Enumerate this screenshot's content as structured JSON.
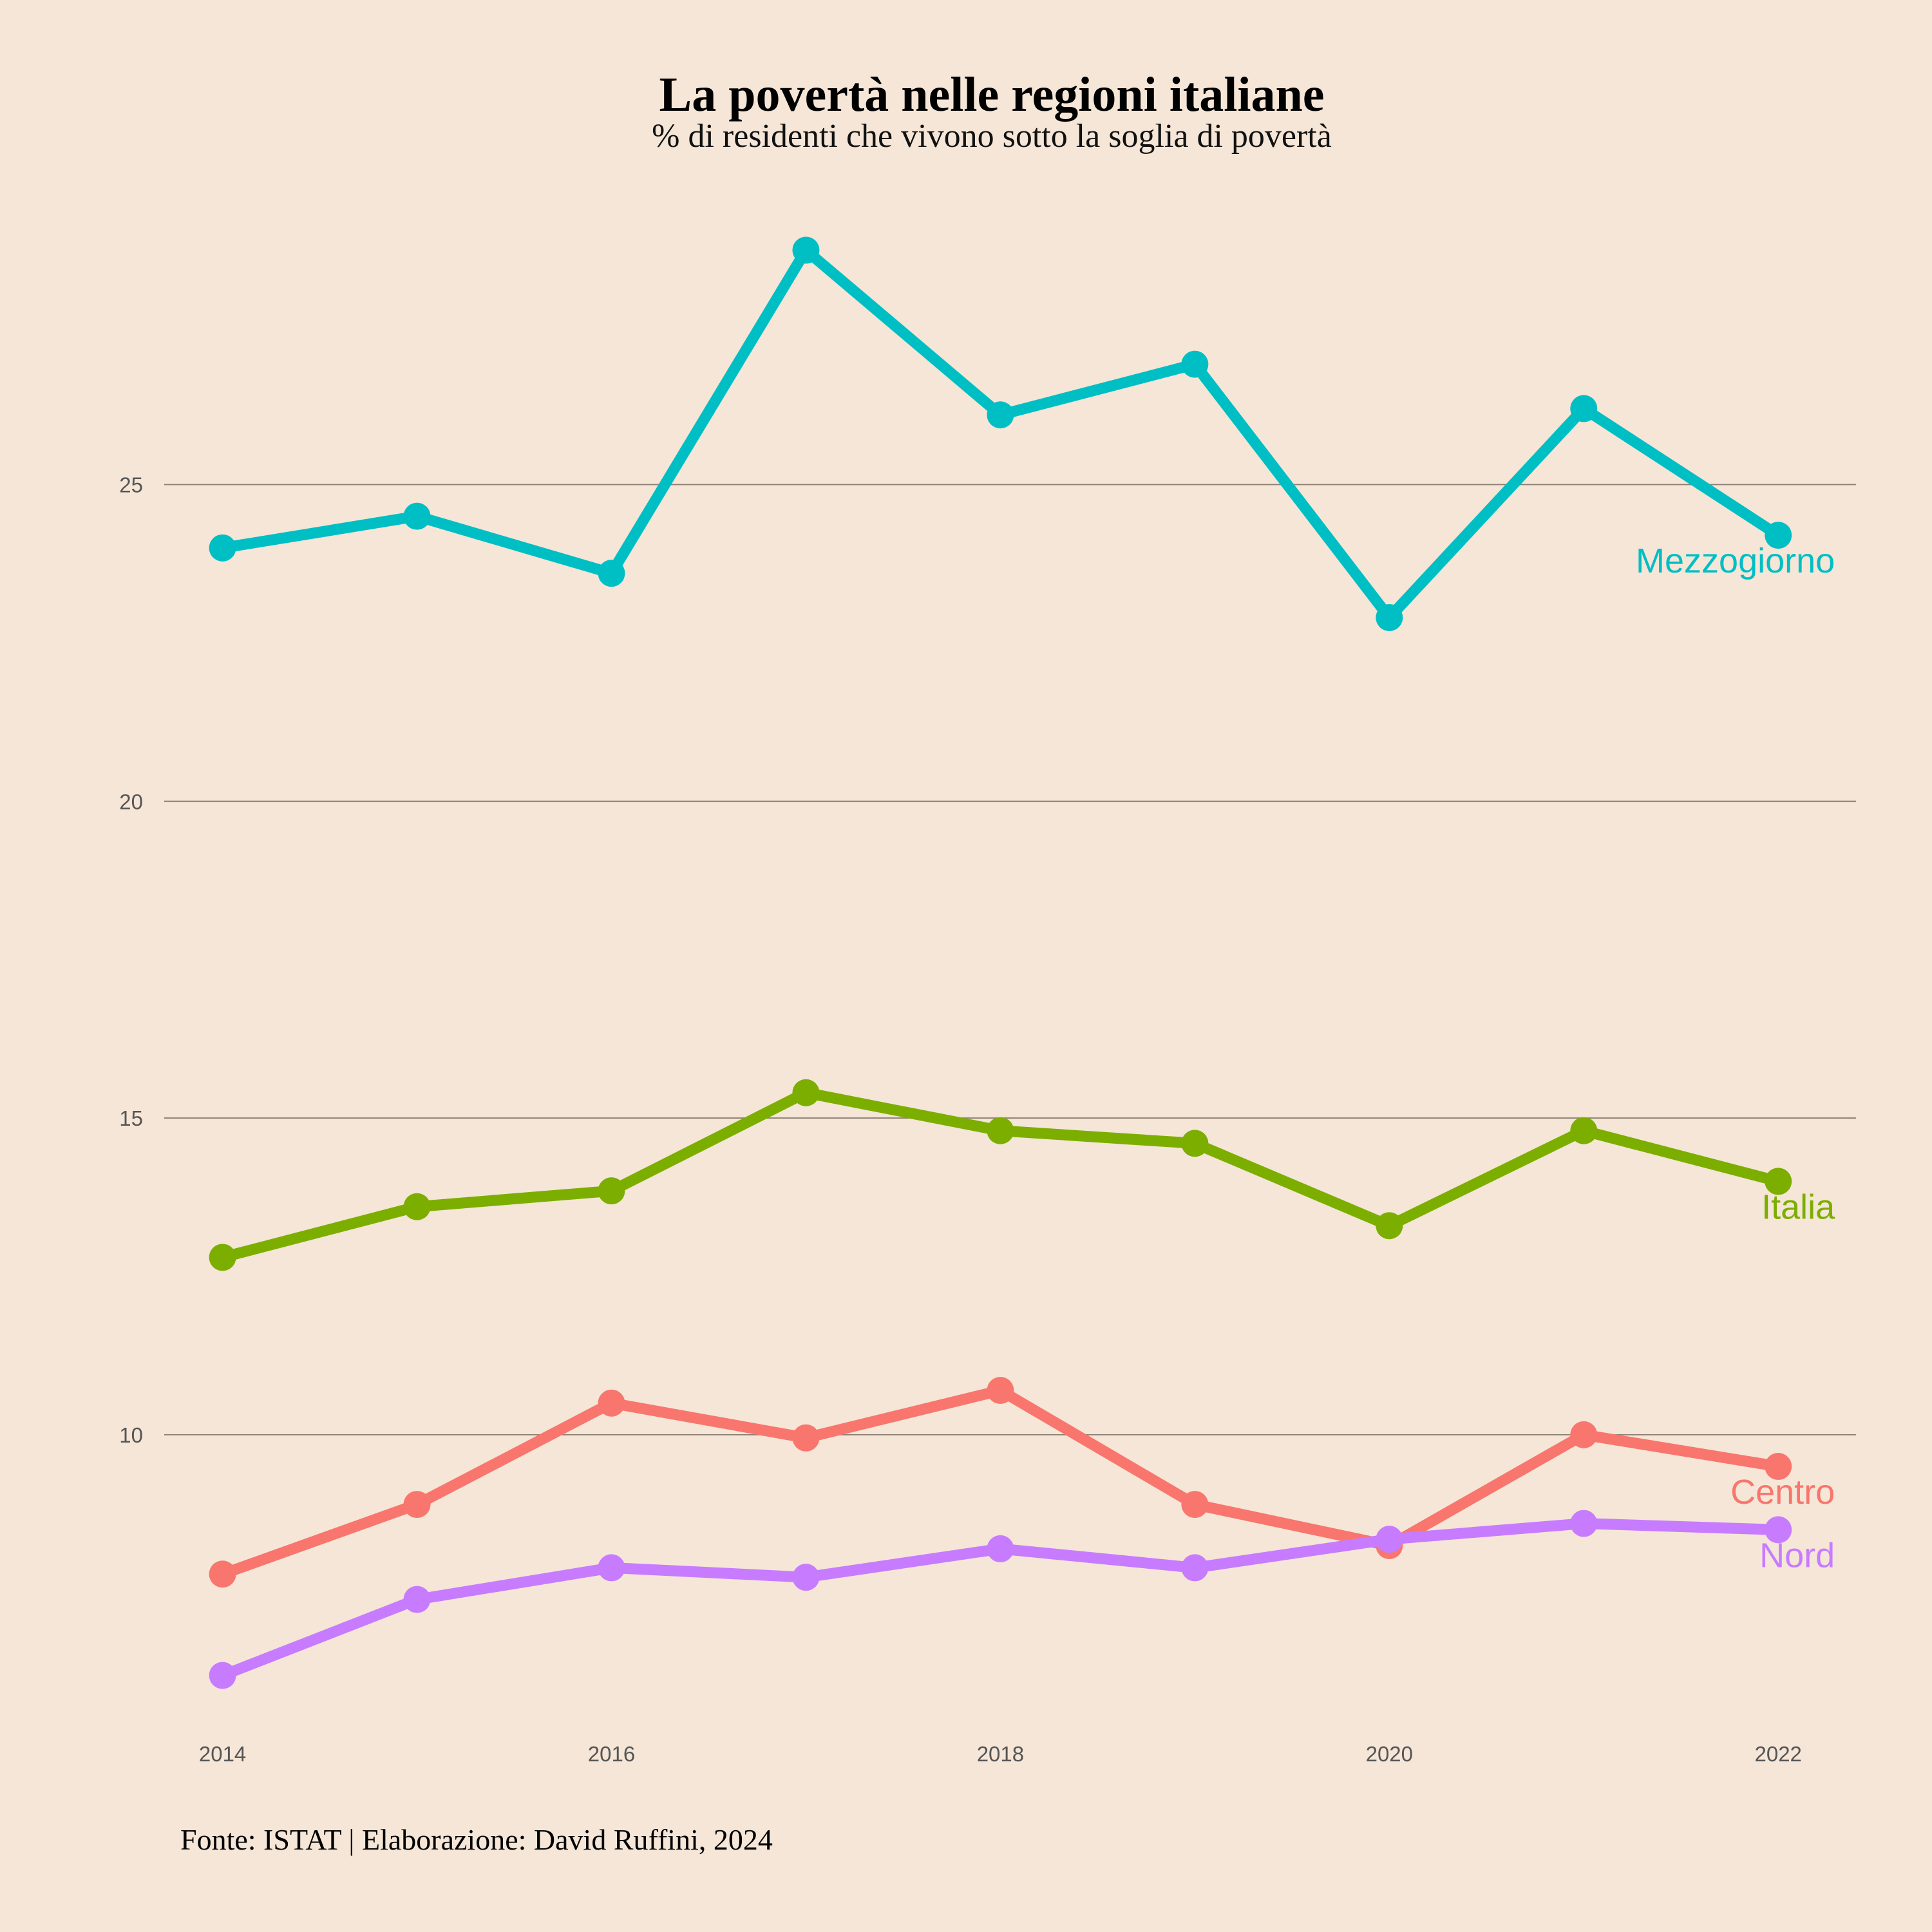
{
  "chart_data": {
    "type": "line",
    "title": "La povertà nelle regioni italiane",
    "subtitle": "% di residenti che vivono sotto la soglia di povertà",
    "caption": "Fonte: ISTAT | Elaborazione: David Ruffini, 2024",
    "xlabel": "",
    "ylabel": "",
    "x": [
      2014,
      2015,
      2016,
      2017,
      2018,
      2019,
      2020,
      2021,
      2022
    ],
    "xticks": [
      "2014",
      "2016",
      "2018",
      "2020",
      "2022"
    ],
    "yticks": [
      "10",
      "15",
      "20",
      "25"
    ],
    "xlim": [
      2013.7,
      2022.4
    ],
    "ylim": [
      5.2,
      29.6
    ],
    "grid": "horizontal",
    "legend": "direct labels at line ends",
    "series": [
      {
        "name": "Mezzogiorno",
        "color": "#00BFC4",
        "values": [
          24.0,
          24.5,
          23.6,
          28.7,
          26.1,
          26.9,
          22.9,
          26.2,
          24.2
        ]
      },
      {
        "name": "Italia",
        "color": "#7CAE00",
        "values": [
          12.8,
          13.6,
          13.85,
          15.4,
          14.8,
          14.6,
          13.3,
          14.8,
          14.0
        ]
      },
      {
        "name": "Centro",
        "color": "#F8766D",
        "values": [
          7.8,
          8.9,
          10.5,
          9.95,
          10.7,
          8.9,
          8.25,
          10.0,
          9.5
        ]
      },
      {
        "name": "Nord",
        "color": "#C77CFF",
        "values": [
          6.2,
          7.4,
          7.9,
          7.75,
          8.2,
          7.9,
          8.35,
          8.6,
          8.5
        ]
      }
    ]
  }
}
